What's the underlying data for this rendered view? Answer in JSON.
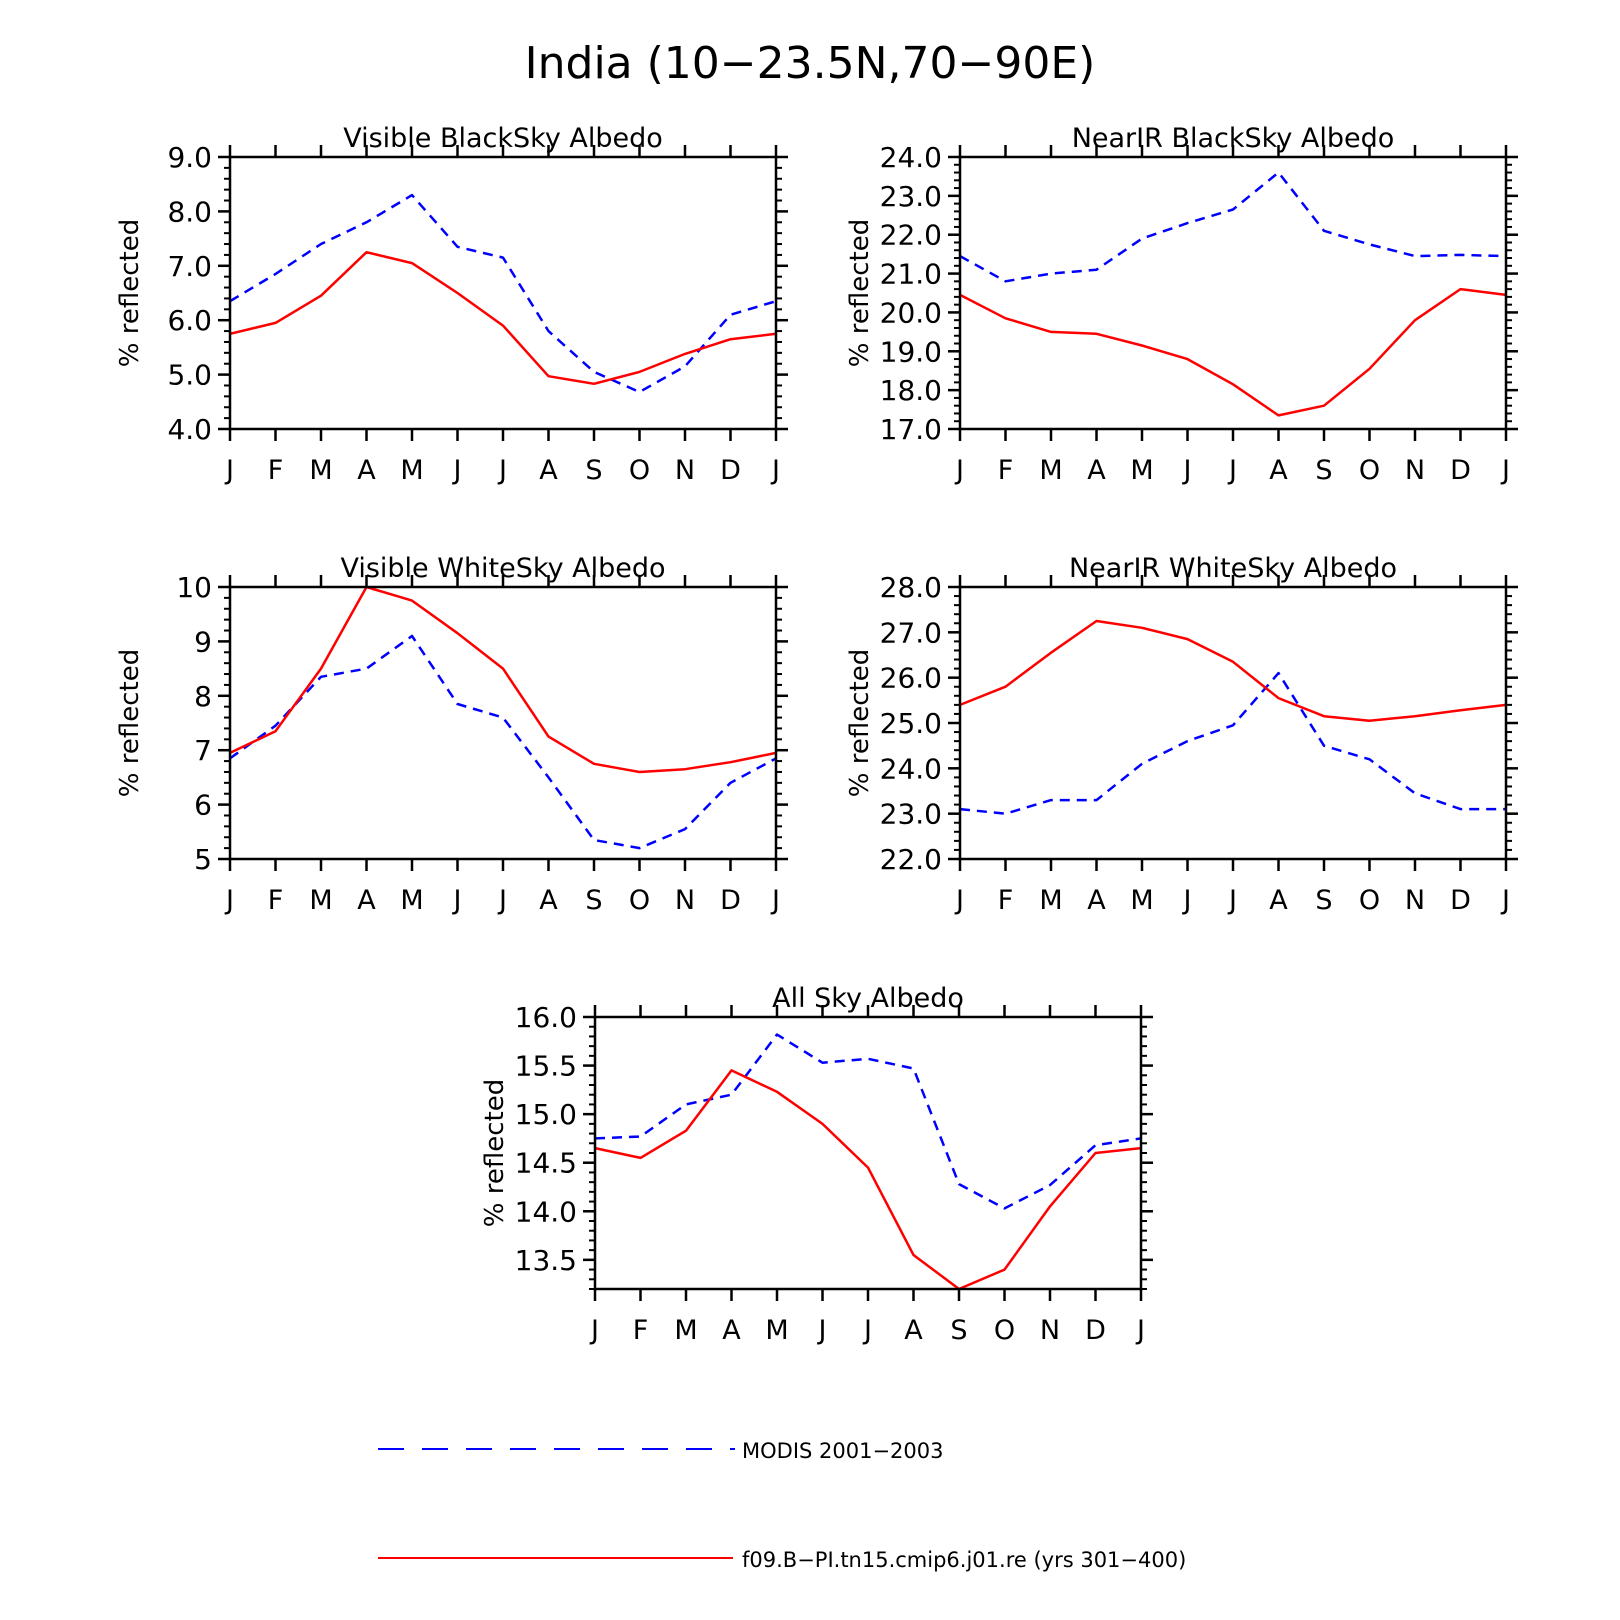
{
  "figure_title": "India (10−23.5N,70−90E)",
  "legend": [
    {
      "label": "MODIS 2001−2003",
      "color": "#0000ff",
      "dash": true
    },
    {
      "label": "f09.B−PI.tn15.cmip6.j01.re (yrs 301−400)",
      "color": "#ff0000",
      "dash": false
    }
  ],
  "chart_data": [
    {
      "type": "line",
      "title": "Visible BlackSky Albedo",
      "ylabel": "% reflected",
      "xlabel": "",
      "categories": [
        "J",
        "F",
        "M",
        "A",
        "M",
        "J",
        "J",
        "A",
        "S",
        "O",
        "N",
        "D",
        "J"
      ],
      "ylim": [
        4.0,
        9.0
      ],
      "yticks": [
        "4.0",
        "5.0",
        "6.0",
        "7.0",
        "8.0",
        "9.0"
      ],
      "series": [
        {
          "name": "MODIS 2001−2003",
          "color": "#0000ff",
          "dash": true,
          "values": [
            6.35,
            6.85,
            7.4,
            7.8,
            8.3,
            7.35,
            7.15,
            5.8,
            5.05,
            4.68,
            5.15,
            6.1,
            6.35
          ]
        },
        {
          "name": "f09.B−PI.tn15.cmip6.j01.re (yrs 301−400)",
          "color": "#ff0000",
          "dash": false,
          "values": [
            5.75,
            5.95,
            6.45,
            7.25,
            7.05,
            6.5,
            5.9,
            4.97,
            4.83,
            5.05,
            5.38,
            5.65,
            5.75
          ]
        }
      ]
    },
    {
      "type": "line",
      "title": "NearIR BlackSky Albedo",
      "ylabel": "% reflected",
      "xlabel": "",
      "categories": [
        "J",
        "F",
        "M",
        "A",
        "M",
        "J",
        "J",
        "A",
        "S",
        "O",
        "N",
        "D",
        "J"
      ],
      "ylim": [
        17.0,
        24.0
      ],
      "yticks": [
        "17.0",
        "18.0",
        "19.0",
        "20.0",
        "21.0",
        "22.0",
        "23.0",
        "24.0"
      ],
      "series": [
        {
          "name": "MODIS 2001−2003",
          "color": "#0000ff",
          "dash": true,
          "values": [
            21.45,
            20.8,
            21.0,
            21.1,
            21.9,
            22.3,
            22.65,
            23.6,
            22.1,
            21.75,
            21.45,
            21.48,
            21.45
          ]
        },
        {
          "name": "f09.B−PI.tn15.cmip6.j01.re (yrs 301−400)",
          "color": "#ff0000",
          "dash": false,
          "values": [
            20.45,
            19.85,
            19.5,
            19.45,
            19.15,
            18.8,
            18.15,
            17.35,
            17.6,
            18.55,
            19.8,
            20.6,
            20.45
          ]
        }
      ]
    },
    {
      "type": "line",
      "title": "Visible WhiteSky Albedo",
      "ylabel": "% reflected",
      "xlabel": "",
      "categories": [
        "J",
        "F",
        "M",
        "A",
        "M",
        "J",
        "J",
        "A",
        "S",
        "O",
        "N",
        "D",
        "J"
      ],
      "ylim": [
        5,
        10
      ],
      "yticks": [
        "5",
        "6",
        "7",
        "8",
        "9",
        "10"
      ],
      "series": [
        {
          "name": "MODIS 2001−2003",
          "color": "#0000ff",
          "dash": true,
          "values": [
            6.85,
            7.45,
            8.35,
            8.5,
            9.1,
            7.85,
            7.6,
            6.5,
            5.35,
            5.2,
            5.55,
            6.4,
            6.85
          ]
        },
        {
          "name": "f09.B−PI.tn15.cmip6.j01.re (yrs 301−400)",
          "color": "#ff0000",
          "dash": false,
          "values": [
            6.95,
            7.35,
            8.5,
            10.0,
            9.75,
            9.15,
            8.5,
            7.25,
            6.75,
            6.6,
            6.65,
            6.78,
            6.95
          ]
        }
      ]
    },
    {
      "type": "line",
      "title": "NearIR WhiteSky Albedo",
      "ylabel": "% reflected",
      "xlabel": "",
      "categories": [
        "J",
        "F",
        "M",
        "A",
        "M",
        "J",
        "J",
        "A",
        "S",
        "O",
        "N",
        "D",
        "J"
      ],
      "ylim": [
        22.0,
        28.0
      ],
      "yticks": [
        "22.0",
        "23.0",
        "24.0",
        "25.0",
        "26.0",
        "27.0",
        "28.0"
      ],
      "series": [
        {
          "name": "MODIS 2001−2003",
          "color": "#0000ff",
          "dash": true,
          "values": [
            23.1,
            23.0,
            23.3,
            23.3,
            24.1,
            24.6,
            24.95,
            26.1,
            24.5,
            24.2,
            23.45,
            23.1,
            23.1
          ]
        },
        {
          "name": "f09.B−PI.tn15.cmip6.j01.re (yrs 301−400)",
          "color": "#ff0000",
          "dash": false,
          "values": [
            25.4,
            25.8,
            26.55,
            27.25,
            27.1,
            26.85,
            26.35,
            25.55,
            25.15,
            25.05,
            25.15,
            25.28,
            25.4
          ]
        }
      ]
    },
    {
      "type": "line",
      "title": "All Sky Albedo",
      "ylabel": "% reflected",
      "xlabel": "",
      "categories": [
        "J",
        "F",
        "M",
        "A",
        "M",
        "J",
        "J",
        "A",
        "S",
        "O",
        "N",
        "D",
        "J"
      ],
      "ylim": [
        13.2,
        16.0
      ],
      "yticks": [
        "13.5",
        "14.0",
        "14.5",
        "15.0",
        "15.5",
        "16.0"
      ],
      "series": [
        {
          "name": "MODIS 2001−2003",
          "color": "#0000ff",
          "dash": true,
          "values": [
            14.75,
            14.77,
            15.1,
            15.2,
            15.82,
            15.53,
            15.57,
            15.47,
            14.28,
            14.03,
            14.27,
            14.68,
            14.75
          ]
        },
        {
          "name": "f09.B−PI.tn15.cmip6.j01.re (yrs 301−400)",
          "color": "#ff0000",
          "dash": false,
          "values": [
            14.65,
            14.55,
            14.83,
            15.45,
            15.23,
            14.9,
            14.45,
            13.55,
            13.2,
            13.4,
            14.05,
            14.6,
            14.65
          ]
        }
      ]
    }
  ]
}
